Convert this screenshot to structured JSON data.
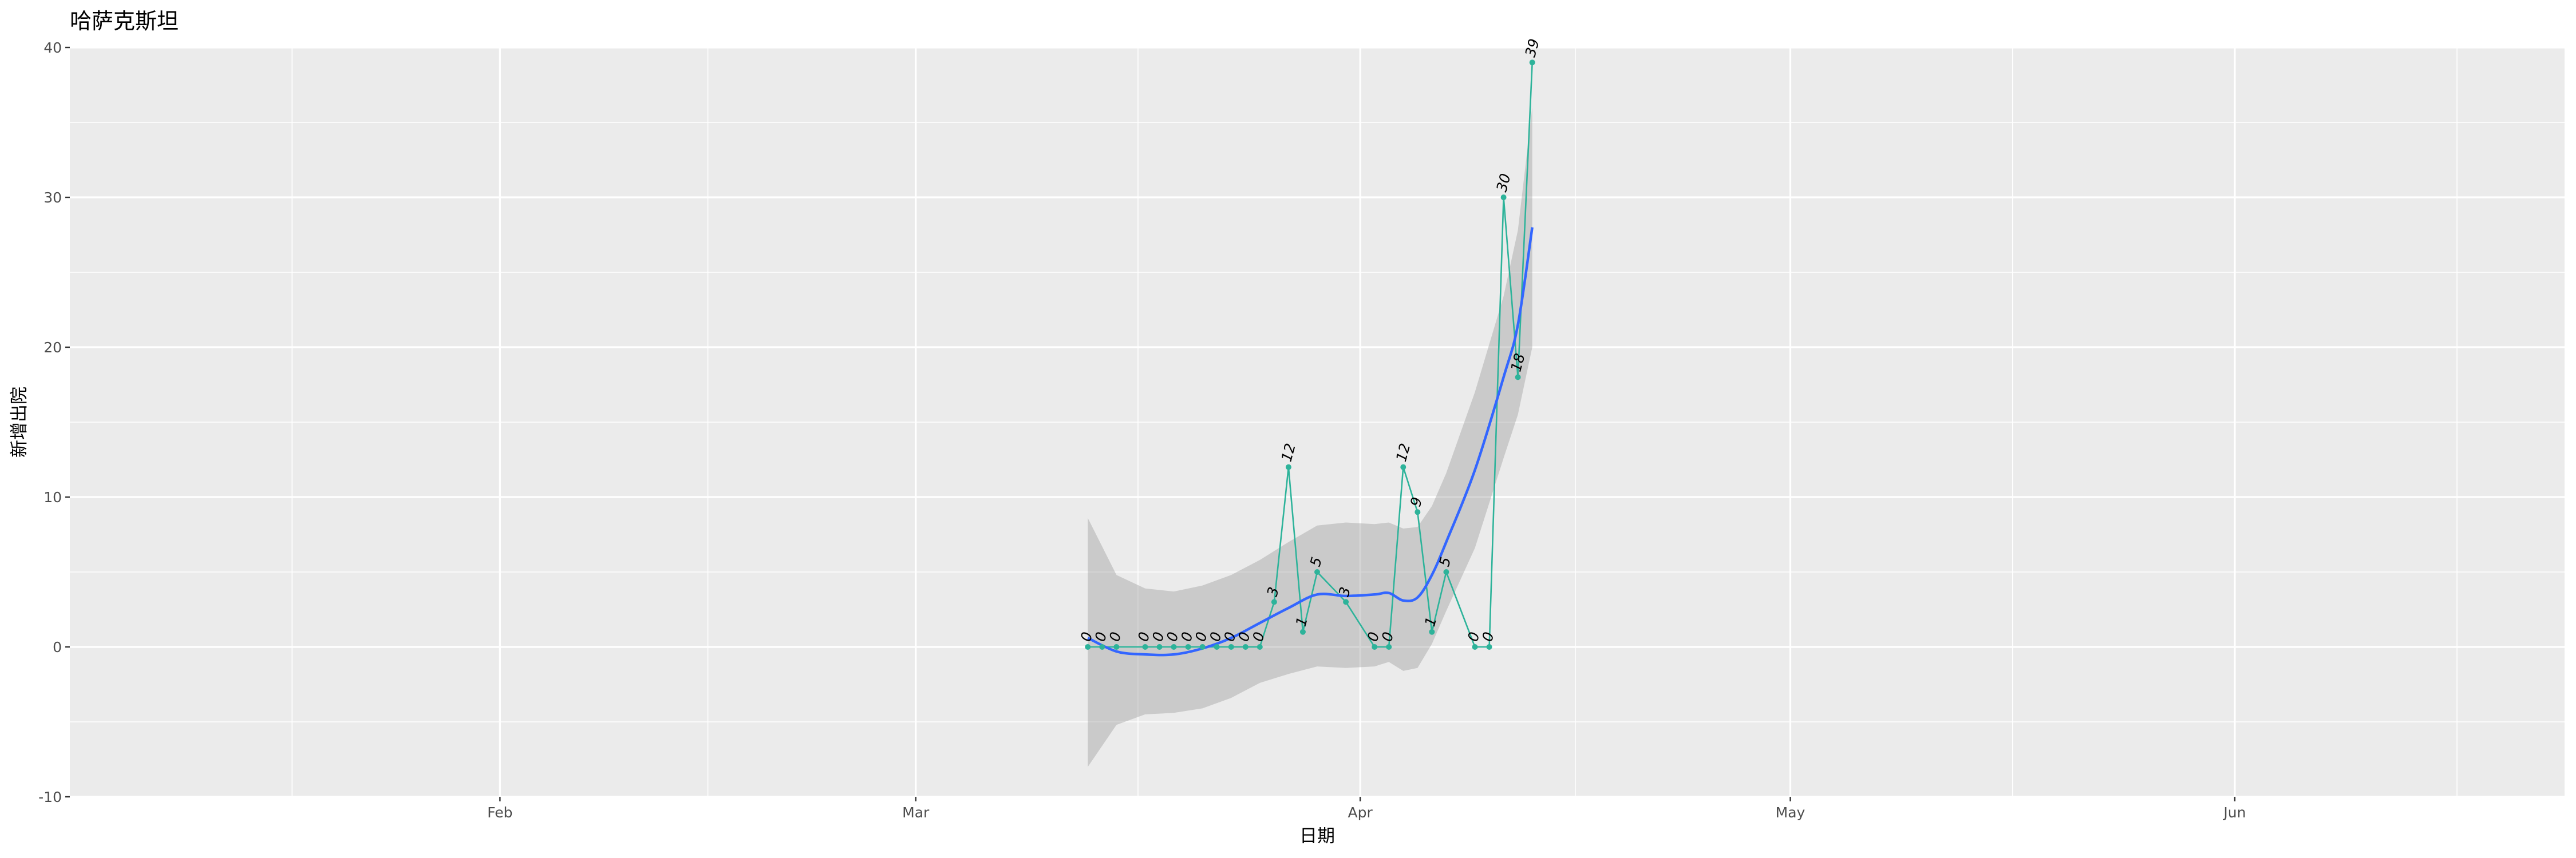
{
  "chart_data": {
    "type": "line",
    "title": "哈萨克斯坦",
    "xlabel": "日期",
    "ylabel": "新增出院",
    "x_ticks": [
      {
        "date": "2020-02-01",
        "label": "Feb"
      },
      {
        "date": "2020-03-01",
        "label": "Mar"
      },
      {
        "date": "2020-04-01",
        "label": "Apr"
      },
      {
        "date": "2020-05-01",
        "label": "May"
      },
      {
        "date": "2020-06-01",
        "label": "Jun"
      }
    ],
    "xlim": [
      "2020-01-02",
      "2020-06-24"
    ],
    "ylim": [
      -10,
      40
    ],
    "y_ticks": [
      -10,
      0,
      10,
      20,
      30,
      40
    ],
    "grid": true,
    "series": [
      {
        "color": "#2db39a",
        "points": [
          {
            "x": "2020-03-13",
            "y": 0
          },
          {
            "x": "2020-03-14",
            "y": 0
          },
          {
            "x": "2020-03-15",
            "y": 0
          },
          {
            "x": "2020-03-17",
            "y": 0
          },
          {
            "x": "2020-03-18",
            "y": 0
          },
          {
            "x": "2020-03-19",
            "y": 0
          },
          {
            "x": "2020-03-20",
            "y": 0
          },
          {
            "x": "2020-03-21",
            "y": 0
          },
          {
            "x": "2020-03-22",
            "y": 0
          },
          {
            "x": "2020-03-23",
            "y": 0
          },
          {
            "x": "2020-03-24",
            "y": 0
          },
          {
            "x": "2020-03-25",
            "y": 0
          },
          {
            "x": "2020-03-26",
            "y": 3
          },
          {
            "x": "2020-03-27",
            "y": 12
          },
          {
            "x": "2020-03-28",
            "y": 1
          },
          {
            "x": "2020-03-29",
            "y": 5
          },
          {
            "x": "2020-03-31",
            "y": 3
          },
          {
            "x": "2020-04-02",
            "y": 0
          },
          {
            "x": "2020-04-03",
            "y": 0
          },
          {
            "x": "2020-04-04",
            "y": 12
          },
          {
            "x": "2020-04-05",
            "y": 9
          },
          {
            "x": "2020-04-06",
            "y": 1
          },
          {
            "x": "2020-04-07",
            "y": 5
          },
          {
            "x": "2020-04-09",
            "y": 0
          },
          {
            "x": "2020-04-10",
            "y": 0
          },
          {
            "x": "2020-04-11",
            "y": 30
          },
          {
            "x": "2020-04-12",
            "y": 18
          },
          {
            "x": "2020-04-13",
            "y": 39
          }
        ]
      }
    ],
    "smooth": {
      "color": "#3366ff",
      "band_color": "#999999",
      "points": [
        {
          "x": "2020-03-13",
          "y": 0.6,
          "lo": -8.0,
          "hi": 8.6
        },
        {
          "x": "2020-03-15",
          "y": -0.3,
          "lo": -5.2,
          "hi": 4.8
        },
        {
          "x": "2020-03-17",
          "y": -0.5,
          "lo": -4.5,
          "hi": 3.9
        },
        {
          "x": "2020-03-19",
          "y": -0.5,
          "lo": -4.4,
          "hi": 3.7
        },
        {
          "x": "2020-03-21",
          "y": -0.1,
          "lo": -4.1,
          "hi": 4.1
        },
        {
          "x": "2020-03-23",
          "y": 0.6,
          "lo": -3.4,
          "hi": 4.8
        },
        {
          "x": "2020-03-25",
          "y": 1.6,
          "lo": -2.4,
          "hi": 5.8
        },
        {
          "x": "2020-03-27",
          "y": 2.6,
          "lo": -1.8,
          "hi": 7.0
        },
        {
          "x": "2020-03-29",
          "y": 3.5,
          "lo": -1.3,
          "hi": 8.1
        },
        {
          "x": "2020-03-31",
          "y": 3.4,
          "lo": -1.4,
          "hi": 8.3
        },
        {
          "x": "2020-04-02",
          "y": 3.5,
          "lo": -1.3,
          "hi": 8.2
        },
        {
          "x": "2020-04-03",
          "y": 3.6,
          "lo": -1.0,
          "hi": 8.3
        },
        {
          "x": "2020-04-04",
          "y": 3.1,
          "lo": -1.6,
          "hi": 7.9
        },
        {
          "x": "2020-04-05",
          "y": 3.3,
          "lo": -1.4,
          "hi": 8.0
        },
        {
          "x": "2020-04-06",
          "y": 4.8,
          "lo": 0.2,
          "hi": 9.4
        },
        {
          "x": "2020-04-07",
          "y": 7.0,
          "lo": 2.4,
          "hi": 11.6
        },
        {
          "x": "2020-04-09",
          "y": 11.8,
          "lo": 6.6,
          "hi": 17.0
        },
        {
          "x": "2020-04-11",
          "y": 18.0,
          "lo": 12.6,
          "hi": 23.4
        },
        {
          "x": "2020-04-12",
          "y": 21.5,
          "lo": 15.5,
          "hi": 27.8
        },
        {
          "x": "2020-04-13",
          "y": 28.0,
          "lo": 20.0,
          "hi": 36.0
        }
      ]
    }
  }
}
